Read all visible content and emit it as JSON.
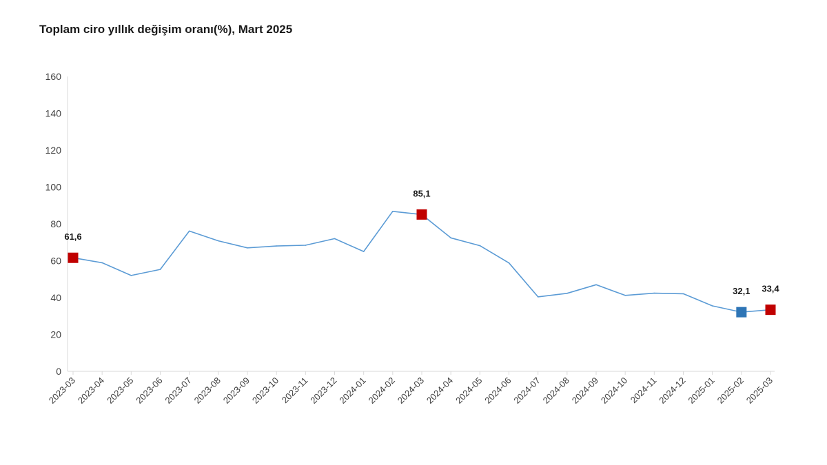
{
  "chart_data": {
    "type": "line",
    "title": "Toplam ciro yıllık değişim oranı(%), Mart 2025",
    "xlabel": "",
    "ylabel": "",
    "ylim": [
      0,
      160
    ],
    "yticks": [
      0,
      20,
      40,
      60,
      80,
      100,
      120,
      140,
      160
    ],
    "grid": false,
    "legend": "none",
    "categories": [
      "2023-03",
      "2023-04",
      "2023-05",
      "2023-06",
      "2023-07",
      "2023-08",
      "2023-09",
      "2023-10",
      "2023-11",
      "2023-12",
      "2024-01",
      "2024-02",
      "2024-03",
      "2024-04",
      "2024-05",
      "2024-06",
      "2024-07",
      "2024-08",
      "2024-09",
      "2024-10",
      "2024-11",
      "2024-12",
      "2025-01",
      "2025-02",
      "2025-03"
    ],
    "series": [
      {
        "values": [
          61.6,
          58.9,
          52.0,
          55.3,
          76.1,
          70.8,
          67.0,
          68.0,
          68.4,
          72.0,
          65.0,
          86.8,
          85.1,
          72.4,
          68.2,
          58.8,
          40.4,
          42.3,
          47.0,
          41.2,
          42.4,
          42.1,
          35.5,
          32.1,
          33.4
        ],
        "color": "#5b9bd5"
      }
    ],
    "highlights": [
      {
        "category": "2023-03",
        "value": 61.6,
        "label": "61,6",
        "color": "#c00000"
      },
      {
        "category": "2024-03",
        "value": 85.1,
        "label": "85,1",
        "color": "#c00000"
      },
      {
        "category": "2025-02",
        "value": 32.1,
        "label": "32,1",
        "color": "#2e75b6"
      },
      {
        "category": "2025-03",
        "value": 33.4,
        "label": "33,4",
        "color": "#c00000"
      }
    ]
  }
}
